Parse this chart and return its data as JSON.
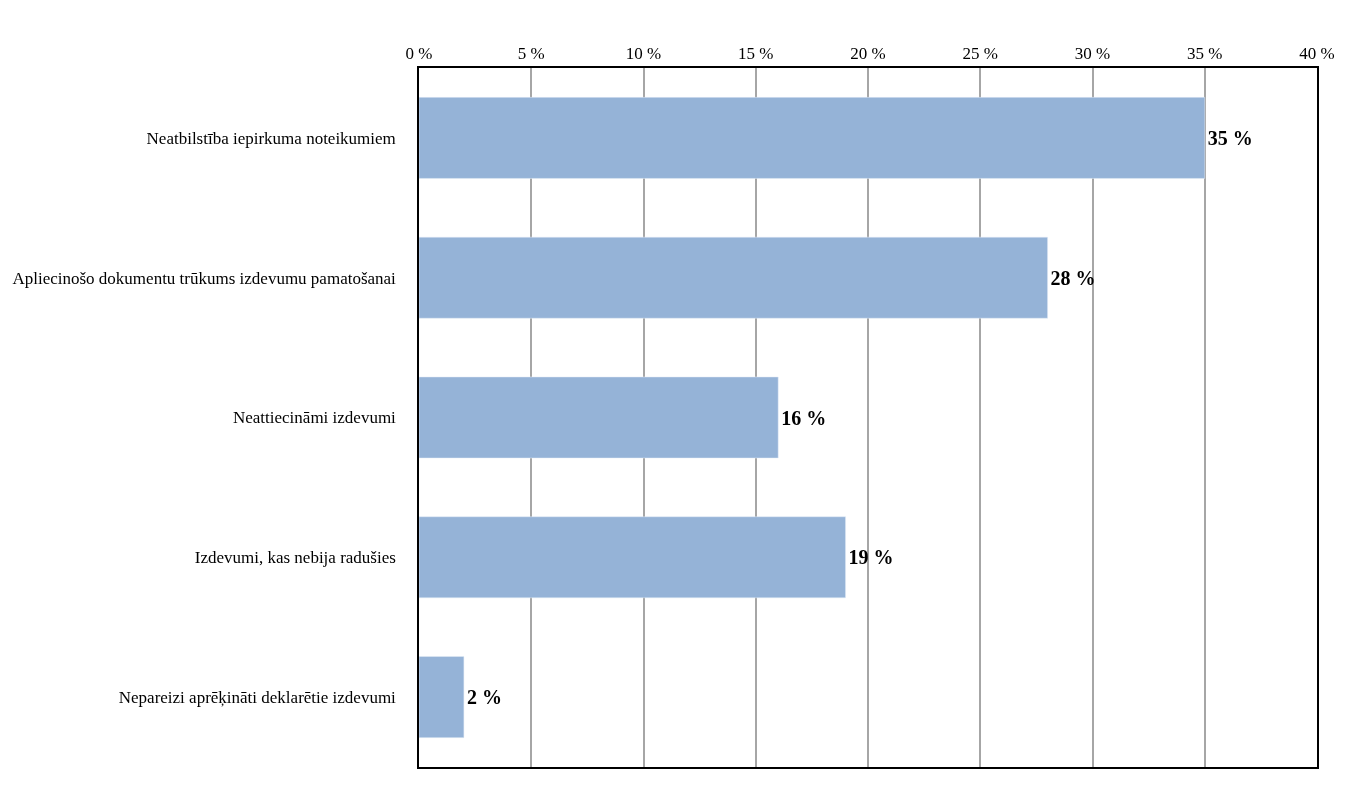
{
  "chart_data": {
    "type": "bar",
    "orientation": "horizontal",
    "categories": [
      "Neatbilstība iepirkuma noteikumiem",
      "Apliecinošo dokumentu trūkums izdevumu pamatošanai",
      "Neattiecināmi izdevumi",
      "Izdevumi, kas nebija radušies",
      "Nepareizi aprēķināti deklarētie izdevumi"
    ],
    "values": [
      35,
      28,
      16,
      19,
      2
    ],
    "value_labels": [
      "35 %",
      "28 %",
      "16 %",
      "19 %",
      "2 %"
    ],
    "color": "#95b3d7",
    "xlim": [
      0,
      40
    ],
    "xticks": [
      {
        "value": 0,
        "label": "0 %"
      },
      {
        "value": 5,
        "label": "5 %"
      },
      {
        "value": 10,
        "label": "10 %"
      },
      {
        "value": 15,
        "label": "15 %"
      },
      {
        "value": 20,
        "label": "20 %"
      },
      {
        "value": 25,
        "label": "25 %"
      },
      {
        "value": 30,
        "label": "30 %"
      },
      {
        "value": 35,
        "label": "35 %"
      },
      {
        "value": 40,
        "label": "40 %"
      }
    ],
    "grid": "x",
    "legend": false
  }
}
